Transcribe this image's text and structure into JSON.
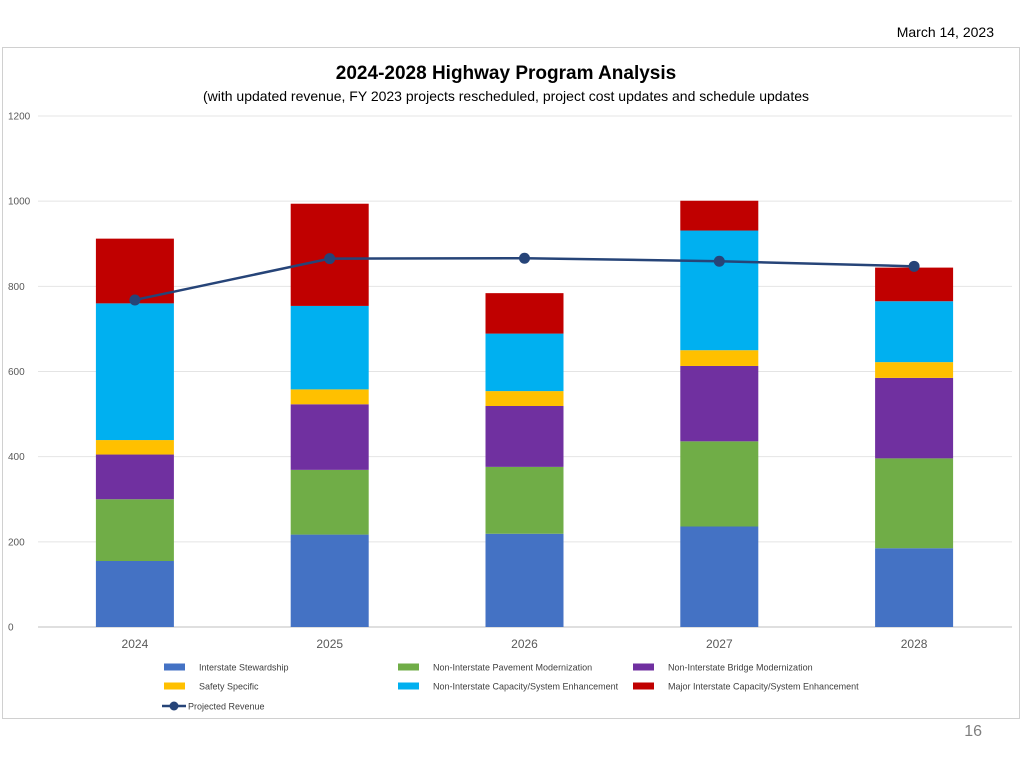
{
  "header": {
    "date": "March 14, 2023",
    "page_number": "16"
  },
  "chart_data": {
    "type": "bar",
    "stacked": true,
    "title": "2024-2028 Highway Program Analysis",
    "subtitle": "(with updated revenue, FY 2023 projects rescheduled, project cost updates and schedule updates",
    "categories": [
      "2024",
      "2025",
      "2026",
      "2027",
      "2028"
    ],
    "ylim": [
      0,
      1200
    ],
    "yticks": [
      0,
      200,
      400,
      600,
      800,
      1000,
      1200
    ],
    "grid": true,
    "legend_position": "bottom",
    "series": [
      {
        "name": "Interstate Stewardship",
        "color": "#4472C4",
        "values": [
          155,
          217,
          219,
          236,
          185
        ]
      },
      {
        "name": "Non-Interstate Pavement Modernization",
        "color": "#70AD47",
        "values": [
          145,
          152,
          157,
          200,
          211
        ]
      },
      {
        "name": "Non-Interstate Bridge Modernization",
        "color": "#7030A0",
        "values": [
          105,
          154,
          143,
          177,
          189
        ]
      },
      {
        "name": "Safety Specific",
        "color": "#FFC000",
        "values": [
          34,
          35,
          35,
          37,
          37
        ]
      },
      {
        "name": "Non-Interstate Capacity/System Enhancement",
        "color": "#00B0F0",
        "values": [
          321,
          196,
          135,
          281,
          143
        ]
      },
      {
        "name": "Major Interstate Capacity/System Enhancement",
        "color": "#C00000",
        "values": [
          152,
          240,
          95,
          70,
          79
        ]
      }
    ],
    "line_series": {
      "name": "Projected Revenue",
      "color": "#264478",
      "values": [
        768,
        865,
        866,
        859,
        847
      ]
    }
  }
}
